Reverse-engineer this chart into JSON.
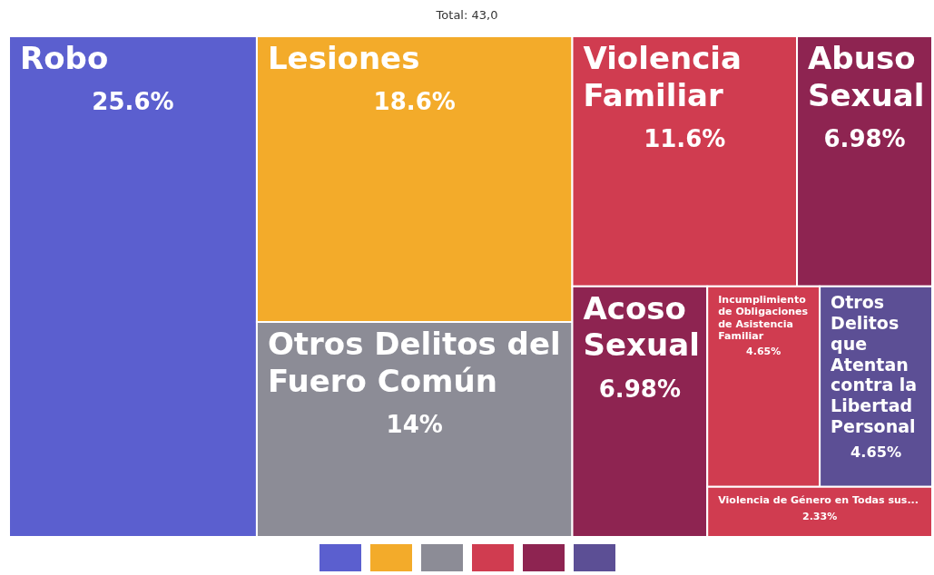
{
  "chart_data": {
    "type": "other",
    "title": "Total: 43,0",
    "categories": [
      "Robo",
      "Lesiones",
      "Otros Delitos del Fuero Común",
      "Violencia Familiar",
      "Abuso Sexual",
      "Acoso Sexual",
      "Incumplimiento de Obligaciones de Asistencia Familiar",
      "Otros Delitos que Atentan contra la Libertad Personal",
      "Violencia de Género en Todas sus..."
    ],
    "values": [
      25.6,
      18.6,
      14,
      11.6,
      6.98,
      6.98,
      4.65,
      4.65,
      2.33
    ],
    "value_labels": [
      "25.6%",
      "18.6%",
      "14%",
      "11.6%",
      "6.98%",
      "6.98%",
      "4.65%",
      "4.65%",
      "2.33%"
    ],
    "colors": [
      "#5b5fcf",
      "#f3ab2a",
      "#8c8c96",
      "#d03c50",
      "#8e2451",
      "#8e2451",
      "#d03c50",
      "#5c4f95",
      "#d03c50"
    ]
  }
}
